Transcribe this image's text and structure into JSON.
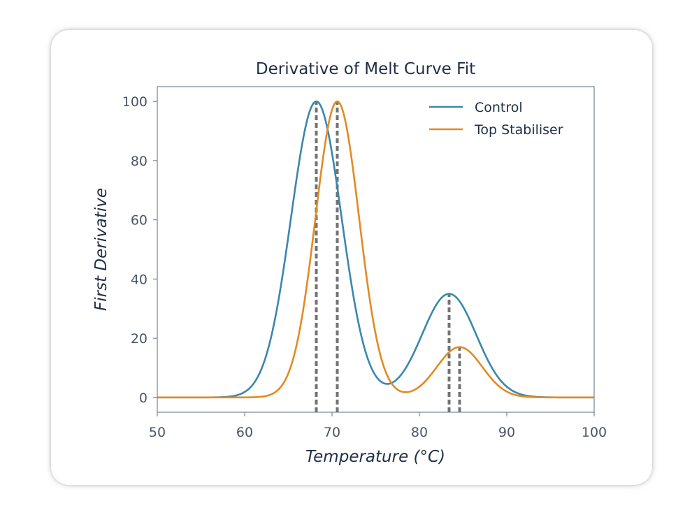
{
  "chart_data": {
    "type": "line",
    "title": "Derivative of Melt Curve Fit",
    "xlabel": "Temperature (°C)",
    "ylabel": "First Derivative",
    "xlim": [
      50,
      100
    ],
    "ylim": [
      -5,
      105
    ],
    "xticks": [
      "50",
      "60",
      "70",
      "80",
      "90",
      "100"
    ],
    "yticks": [
      "0",
      "20",
      "40",
      "60",
      "80",
      "100"
    ],
    "xtick_values": [
      50,
      60,
      70,
      80,
      90,
      100
    ],
    "ytick_values": [
      0,
      20,
      40,
      60,
      80,
      100
    ],
    "grid": false,
    "legend_position": "top-right",
    "series": [
      {
        "name": "Control",
        "color": "#3a87ad",
        "peaks": [
          {
            "center": 68.2,
            "height": 100,
            "sigma": 2.9
          },
          {
            "center": 83.4,
            "height": 35,
            "sigma": 3.1
          }
        ]
      },
      {
        "name": "Top Stabiliser",
        "color": "#e28a24",
        "peaks": [
          {
            "center": 70.6,
            "height": 100,
            "sigma": 2.5
          },
          {
            "center": 84.6,
            "height": 17,
            "sigma": 2.6
          }
        ]
      }
    ],
    "reference_lines": [
      {
        "x": 68.2,
        "ytop": 100
      },
      {
        "x": 70.6,
        "ytop": 100
      },
      {
        "x": 83.4,
        "ytop": 35
      },
      {
        "x": 84.6,
        "ytop": 17
      }
    ],
    "reference_line_color": "#737373"
  }
}
